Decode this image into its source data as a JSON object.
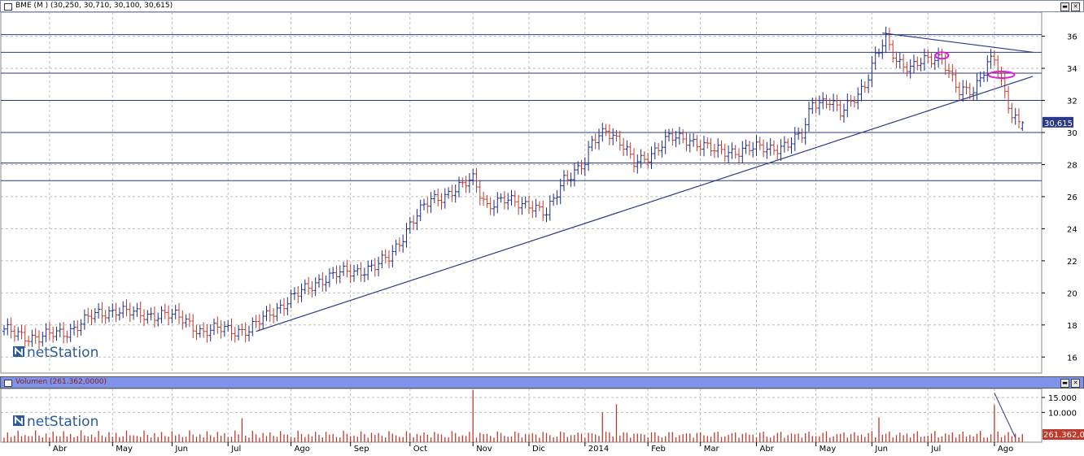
{
  "price_title": "BME (M ) (30,250, 30,710, 30,100, 30,615)",
  "volume_title": "Volumen (261.362,0000)",
  "logo_text": "netStation",
  "last_price_tag": "30,615",
  "last_volume_tag": "261.362,0",
  "window_buttons": {
    "minimize": "▬",
    "close": "✕"
  },
  "colors": {
    "up": "#1a2a8a",
    "down": "#c0392b",
    "line": "#2a3a8a",
    "ellipse": "#e020d0",
    "volume": "#c0392b"
  },
  "chart_data": [
    {
      "type": "bar",
      "subtype": "ohlc",
      "ylim": [
        15,
        37.5
      ],
      "yticks": [
        16,
        18,
        20,
        22,
        24,
        26,
        28,
        30,
        32,
        34,
        36
      ],
      "horizontal_levels": [
        36.1,
        35.0,
        33.7,
        32.0,
        30.0,
        28.1,
        27.0
      ],
      "grid": true,
      "months": [
        {
          "label": "Abr",
          "idx": 13
        },
        {
          "label": "May",
          "idx": 31
        },
        {
          "label": "Jun",
          "idx": 48
        },
        {
          "label": "Jul",
          "idx": 64
        },
        {
          "label": "Ago",
          "idx": 82
        },
        {
          "label": "Sep",
          "idx": 99
        },
        {
          "label": "Oct",
          "idx": 116
        },
        {
          "label": "Nov",
          "idx": 134
        },
        {
          "label": "Dic",
          "idx": 150
        },
        {
          "label": "2014",
          "idx": 166
        },
        {
          "label": "Feb",
          "idx": 184
        },
        {
          "label": "Mar",
          "idx": 199
        },
        {
          "label": "Abr",
          "idx": 215
        },
        {
          "label": "May",
          "idx": 232
        },
        {
          "label": "Jun",
          "idx": 248
        },
        {
          "label": "Jul",
          "idx": 264
        },
        {
          "label": "Ago",
          "idx": 283
        }
      ],
      "anchors": [
        [
          0,
          17.6
        ],
        [
          10,
          17.2
        ],
        [
          18,
          17.6
        ],
        [
          25,
          18.5
        ],
        [
          32,
          19.0
        ],
        [
          38,
          18.6
        ],
        [
          45,
          18.7
        ],
        [
          52,
          18.3
        ],
        [
          57,
          17.5
        ],
        [
          63,
          17.8
        ],
        [
          70,
          17.6
        ],
        [
          76,
          18.8
        ],
        [
          82,
          19.6
        ],
        [
          90,
          20.8
        ],
        [
          98,
          21.3
        ],
        [
          106,
          21.6
        ],
        [
          110,
          22.2
        ],
        [
          116,
          24.3
        ],
        [
          122,
          25.8
        ],
        [
          131,
          26.6
        ],
        [
          134,
          27.1
        ],
        [
          138,
          25.5
        ],
        [
          143,
          25.7
        ],
        [
          150,
          25.6
        ],
        [
          155,
          24.8
        ],
        [
          160,
          27.2
        ],
        [
          166,
          28.0
        ],
        [
          168,
          29.3
        ],
        [
          172,
          30.3
        ],
        [
          176,
          29.4
        ],
        [
          180,
          28.0
        ],
        [
          184,
          28.6
        ],
        [
          190,
          29.6
        ],
        [
          196,
          29.6
        ],
        [
          203,
          28.8
        ],
        [
          210,
          28.9
        ],
        [
          216,
          29.0
        ],
        [
          224,
          29.2
        ],
        [
          228,
          29.8
        ],
        [
          231,
          32.0
        ],
        [
          236,
          31.9
        ],
        [
          239,
          31.1
        ],
        [
          243,
          32.3
        ],
        [
          246,
          33.0
        ],
        [
          249,
          34.6
        ],
        [
          252,
          35.8
        ],
        [
          255,
          34.6
        ],
        [
          259,
          34.0
        ],
        [
          264,
          34.5
        ],
        [
          268,
          34.8
        ],
        [
          270,
          33.8
        ],
        [
          273,
          32.4
        ],
        [
          277,
          32.6
        ],
        [
          281,
          34.5
        ],
        [
          283,
          34.6
        ],
        [
          286,
          32.2
        ],
        [
          288,
          31.0
        ],
        [
          291,
          30.6
        ]
      ],
      "last_ohlc": {
        "open": 30.25,
        "high": 30.71,
        "low": 30.1,
        "close": 30.615
      },
      "trendlines": [
        {
          "from": {
            "idx": 72,
            "value": 17.6
          },
          "to": {
            "idx": 294,
            "value": 33.5
          }
        },
        {
          "from": {
            "idx": 251,
            "value": 36.2
          },
          "to": {
            "idx": 294,
            "value": 35.0
          }
        }
      ],
      "ellipses": [
        {
          "idx": 268,
          "value": 34.8
        },
        {
          "idx": 285,
          "value": 33.6
        }
      ]
    },
    {
      "type": "bar",
      "title": "Volumen",
      "ylim": [
        0,
        18000
      ],
      "yticks": [
        {
          "value": 15000,
          "label": "15.000"
        },
        {
          "value": 10000,
          "label": "10.000"
        }
      ],
      "spikes": [
        {
          "idx": 134,
          "value": 17500
        },
        {
          "idx": 171,
          "value": 10000
        },
        {
          "idx": 175,
          "value": 12700
        },
        {
          "idx": 283,
          "value": 12500
        },
        {
          "idx": 68,
          "value": 8000
        },
        {
          "idx": 250,
          "value": 8300
        }
      ],
      "last_value": 261362
    }
  ]
}
